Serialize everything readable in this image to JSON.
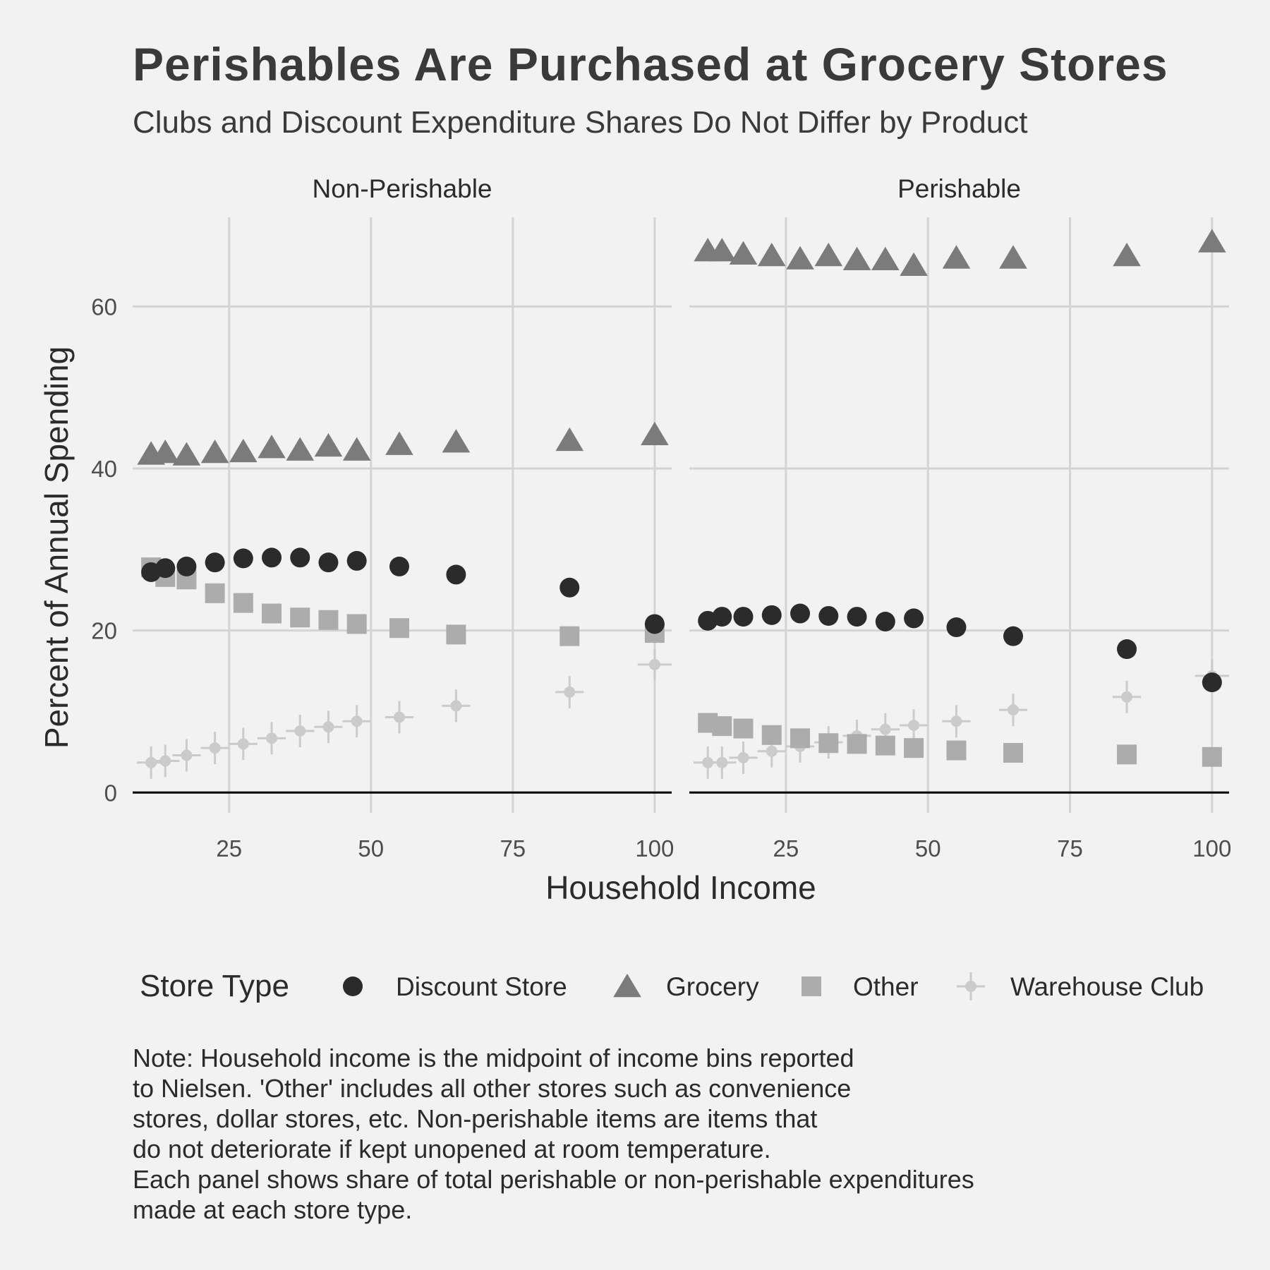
{
  "chart_data": {
    "type": "scatter",
    "title": "Perishables Are Purchased at Grocery Stores",
    "subtitle": "Clubs and Discount Expenditure Shares Do Not Differ by Product",
    "xlabel": "Household Income",
    "ylabel": "Percent of Annual Spending",
    "xlim": [
      8,
      103
    ],
    "ylim": [
      -2.5,
      71
    ],
    "x_ticks": [
      25,
      50,
      75,
      100
    ],
    "y_ticks": [
      0,
      20,
      40,
      60
    ],
    "grid": true,
    "legend": {
      "title": "Store Type",
      "position": "bottom",
      "entries": [
        "Discount Store",
        "Grocery",
        "Other",
        "Warehouse Club"
      ]
    },
    "caption": [
      "Note: Household income is the midpoint of income bins reported",
      "to Nielsen. 'Other' includes all other stores such as convenience",
      "stores, dollar stores, etc. Non-perishable items are items that",
      "do not deteriorate if kept unopened at room temperature.",
      "Each panel shows share of total perishable or non-perishable expenditures",
      "made at each store type."
    ],
    "x": [
      11.25,
      13.75,
      17.5,
      22.5,
      27.5,
      32.5,
      37.5,
      42.5,
      47.5,
      55,
      65,
      85,
      100
    ],
    "panels": [
      {
        "label": "Non-Perishable",
        "series": [
          {
            "name": "Discount Store",
            "color": "#2b2b2b",
            "shape": "circle",
            "values": [
              27.2,
              27.7,
              27.9,
              28.4,
              28.9,
              29.0,
              29.0,
              28.4,
              28.6,
              27.9,
              26.9,
              25.3,
              20.8
            ]
          },
          {
            "name": "Grocery",
            "color": "#7b7b7b",
            "shape": "triangle",
            "values": [
              41.8,
              42.0,
              41.7,
              42.0,
              42.1,
              42.6,
              42.3,
              42.8,
              42.3,
              43.0,
              43.3,
              43.5,
              44.2
            ]
          },
          {
            "name": "Other",
            "color": "#acacac",
            "shape": "square",
            "values": [
              27.8,
              26.6,
              26.3,
              24.6,
              23.4,
              22.1,
              21.6,
              21.3,
              20.8,
              20.3,
              19.5,
              19.3,
              19.7
            ]
          },
          {
            "name": "Warehouse Club",
            "color": "#cbcbcb",
            "shape": "cross",
            "values": [
              3.7,
              3.9,
              4.6,
              5.5,
              6.0,
              6.7,
              7.6,
              8.1,
              8.8,
              9.3,
              10.7,
              12.4,
              15.8
            ],
            "error": [
              2.0,
              2.0,
              2.0,
              2.0,
              2.0,
              2.0,
              2.0,
              2.0,
              2.0,
              2.0,
              2.0,
              2.0,
              2.0
            ],
            "xerror": [
              2.5,
              2.5,
              2.5,
              2.5,
              2.5,
              2.5,
              2.5,
              2.5,
              2.5,
              2.5,
              2.5,
              2.5,
              3.0
            ]
          }
        ]
      },
      {
        "label": "Perishable",
        "series": [
          {
            "name": "Discount Store",
            "color": "#2b2b2b",
            "shape": "circle",
            "values": [
              21.2,
              21.7,
              21.7,
              21.9,
              22.1,
              21.8,
              21.7,
              21.1,
              21.5,
              20.4,
              19.3,
              17.7,
              13.6
            ]
          },
          {
            "name": "Grocery",
            "color": "#7b7b7b",
            "shape": "triangle",
            "values": [
              66.9,
              66.9,
              66.5,
              66.3,
              65.9,
              66.3,
              65.8,
              65.8,
              65.1,
              66.0,
              66.0,
              66.3,
              68.0
            ]
          },
          {
            "name": "Other",
            "color": "#acacac",
            "shape": "square",
            "values": [
              8.6,
              8.2,
              7.9,
              7.1,
              6.7,
              6.1,
              6.0,
              5.8,
              5.5,
              5.2,
              4.9,
              4.7,
              4.4
            ]
          },
          {
            "name": "Warehouse Club",
            "color": "#cbcbcb",
            "shape": "cross",
            "values": [
              3.7,
              3.7,
              4.3,
              5.1,
              5.7,
              6.2,
              7.0,
              7.8,
              8.3,
              8.8,
              10.2,
              11.8,
              14.4
            ],
            "error": [
              2.0,
              2.0,
              2.0,
              2.0,
              2.0,
              2.0,
              2.0,
              2.0,
              2.0,
              2.0,
              2.0,
              2.0,
              2.0
            ],
            "xerror": [
              2.5,
              2.5,
              2.5,
              2.5,
              2.5,
              2.5,
              2.5,
              2.5,
              2.5,
              2.5,
              2.5,
              2.5,
              3.0
            ]
          }
        ]
      }
    ]
  }
}
